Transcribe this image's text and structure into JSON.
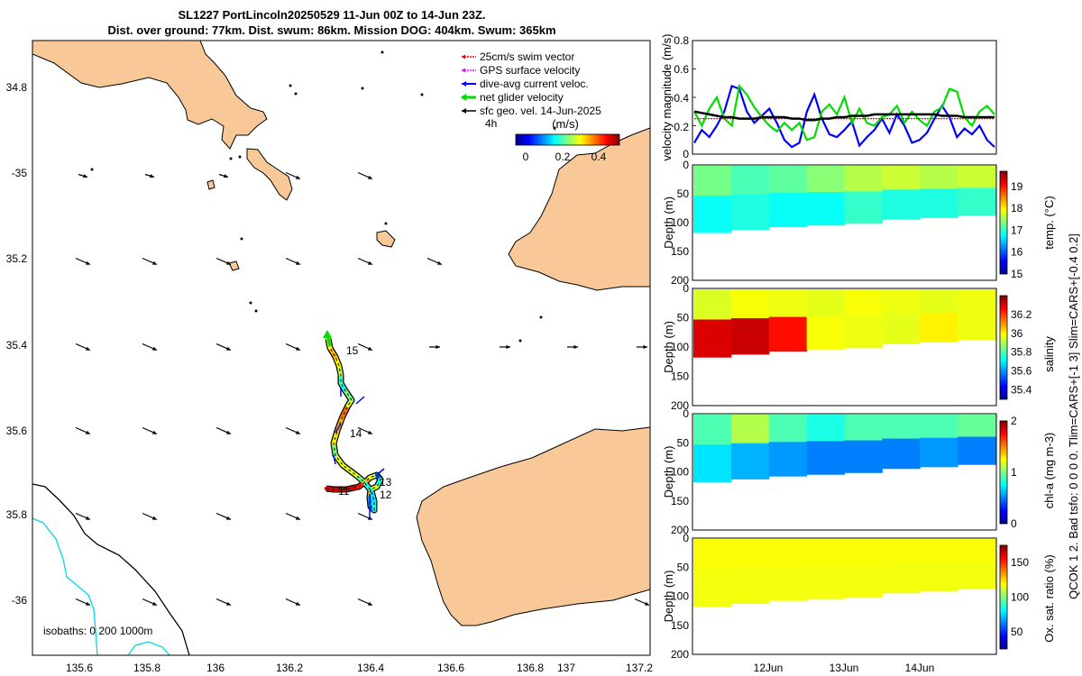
{
  "title": {
    "line1": "SL1227 PortLincoln20250529 11-Jun 00Z to 14-Jun 23Z.",
    "line2": "Dist. over ground: 77km. Dist. swum: 86km. Mission DOG: 404km. Swum: 365km"
  },
  "colors": {
    "land": "#f8c898",
    "swim_vector": "#ff0000",
    "gps_velocity": "#ff00ff",
    "current_velocity": "#0000ff",
    "net_velocity": "#00dd00",
    "geo_velocity": "#000000",
    "isobath_200": "#000000",
    "isobath_1000": "#00d8e8",
    "mean_line": "#000000"
  },
  "map": {
    "lon_ticks": [
      "135.6",
      "135.8",
      "136",
      "136.2",
      "136.4",
      "136.6",
      "136.8",
      "137",
      "137.2"
    ],
    "lat_ticks": [
      "34.8",
      "-35",
      "35.2",
      "35.4",
      "35.6",
      "35.8",
      "-36"
    ],
    "legend": {
      "items": [
        {
          "label": "25cm/s swim vector",
          "color": "#ff0000"
        },
        {
          "label": "GPS surface velocity",
          "color": "#ff00ff"
        },
        {
          "label": "dive-avg current veloc.",
          "color": "#0000ff"
        },
        {
          "label": "net glider velocity",
          "color": "#00dd00"
        },
        {
          "label": "sfc geo. vel. 14-Jun-2025",
          "color": "#000000"
        }
      ],
      "interval": "4h"
    },
    "colorbar": {
      "title": "(m/s)",
      "ticks": [
        "0",
        "0.2",
        "0.4"
      ]
    },
    "track_day_labels": [
      "15",
      "14",
      "13",
      "12",
      "11"
    ],
    "isobath_text": "isobaths: 0   200  1000m"
  },
  "chart_data": [
    {
      "type": "line",
      "title": "velocity magnitude",
      "ylabel": "velocity magnitude (m/s)",
      "ylim": [
        0,
        0.8
      ],
      "yticks": [
        "0",
        "0.2",
        "0.4",
        "0.6",
        "0.8"
      ],
      "x": [
        0,
        0.1,
        0.2,
        0.3,
        0.4,
        0.5,
        0.6,
        0.7,
        0.8,
        0.9,
        1.0,
        1.1,
        1.2,
        1.3,
        1.4,
        1.5,
        1.6,
        1.7,
        1.8,
        1.9,
        2.0,
        2.1,
        2.2,
        2.3,
        2.4,
        2.5,
        2.6,
        2.7,
        2.8,
        2.9,
        3.0,
        3.1,
        3.2,
        3.3,
        3.4,
        3.5,
        3.6,
        3.7,
        3.8,
        3.9,
        4.0
      ],
      "series": [
        {
          "name": "dive-avg current veloc.",
          "color": "#0000ff",
          "values": [
            0.08,
            0.17,
            0.12,
            0.2,
            0.3,
            0.48,
            0.46,
            0.3,
            0.22,
            0.27,
            0.32,
            0.22,
            0.1,
            0.05,
            0.08,
            0.3,
            0.42,
            0.25,
            0.14,
            0.12,
            0.17,
            0.23,
            0.06,
            0.12,
            0.17,
            0.25,
            0.15,
            0.28,
            0.2,
            0.08,
            0.1,
            0.15,
            0.25,
            0.34,
            0.26,
            0.12,
            0.18,
            0.14,
            0.2,
            0.1,
            0.05
          ]
        },
        {
          "name": "net glider velocity",
          "color": "#00dd00",
          "values": [
            0.3,
            0.2,
            0.32,
            0.4,
            0.25,
            0.2,
            0.48,
            0.42,
            0.33,
            0.26,
            0.2,
            0.16,
            0.22,
            0.17,
            0.22,
            0.1,
            0.12,
            0.3,
            0.35,
            0.28,
            0.4,
            0.22,
            0.32,
            0.22,
            0.2,
            0.26,
            0.28,
            0.34,
            0.22,
            0.3,
            0.24,
            0.2,
            0.3,
            0.33,
            0.46,
            0.44,
            0.26,
            0.2,
            0.3,
            0.34,
            0.28
          ]
        },
        {
          "name": "25cm/s swim vector",
          "color": "#ff0000",
          "values": [
            0.25,
            0.25,
            0.25,
            0.25,
            0.25,
            0.25,
            0.25,
            0.25,
            0.25,
            0.25,
            0.25,
            0.25,
            0.25,
            0.25,
            0.25,
            0.25,
            0.25,
            0.25,
            0.25,
            0.25,
            0.25,
            0.25,
            0.25,
            0.25,
            0.25,
            0.25,
            0.25,
            0.25,
            0.25,
            0.25,
            0.25,
            0.25,
            0.25,
            0.25,
            0.25,
            0.25,
            0.25,
            0.25,
            0.25,
            0.25,
            0.25
          ]
        },
        {
          "name": "mean",
          "color": "#000000",
          "values": [
            0.3,
            0.29,
            0.28,
            0.27,
            0.26,
            0.26,
            0.25,
            0.25,
            0.25,
            0.26,
            0.26,
            0.26,
            0.26,
            0.25,
            0.25,
            0.24,
            0.24,
            0.25,
            0.25,
            0.26,
            0.26,
            0.27,
            0.27,
            0.27,
            0.28,
            0.28,
            0.28,
            0.28,
            0.28,
            0.28,
            0.28,
            0.28,
            0.28,
            0.27,
            0.27,
            0.27,
            0.26,
            0.26,
            0.26,
            0.26,
            0.26
          ]
        }
      ]
    },
    {
      "type": "heatmap",
      "variable": "temp",
      "ylabel": "Depth (m)",
      "cbar_label": "temp. (°C)",
      "ylim": [
        200,
        0
      ],
      "yticks": [
        "0",
        "50",
        "100",
        "150",
        "200"
      ],
      "clim": [
        15,
        19.7
      ],
      "cbar_ticks": [
        "15",
        "16",
        "17",
        "18",
        "19"
      ],
      "x_days": [
        0,
        0.5,
        1.0,
        1.5,
        2.0,
        2.5,
        3.0,
        3.5,
        4.0
      ],
      "bottom_depth_m": [
        118,
        113,
        108,
        105,
        102,
        95,
        92,
        88,
        85
      ],
      "surface_values": [
        17.3,
        17.1,
        17.2,
        17.4,
        17.6,
        17.7,
        17.6,
        17.7,
        17.6
      ],
      "deep_values": [
        16.8,
        16.9,
        16.8,
        16.8,
        17.0,
        16.9,
        16.9,
        17.0,
        16.9
      ]
    },
    {
      "type": "heatmap",
      "variable": "salinity",
      "ylabel": "Depth (m)",
      "cbar_label": "salinity",
      "ylim": [
        200,
        0
      ],
      "yticks": [
        "0",
        "50",
        "100",
        "150",
        "200"
      ],
      "clim": [
        35.3,
        36.4
      ],
      "cbar_ticks": [
        "35.4",
        "35.6",
        "35.8",
        "36",
        "36.2"
      ],
      "x_days": [
        0,
        0.5,
        1.0,
        1.5,
        2.0,
        2.5,
        3.0,
        3.5,
        4.0
      ],
      "bottom_depth_m": [
        118,
        113,
        108,
        105,
        102,
        95,
        92,
        88,
        85
      ],
      "surface_values": [
        35.95,
        35.98,
        35.97,
        35.96,
        35.98,
        35.97,
        35.96,
        35.97,
        35.97
      ],
      "deep_values": [
        36.3,
        36.32,
        36.25,
        35.98,
        35.97,
        35.96,
        36.0,
        35.97,
        35.97
      ]
    },
    {
      "type": "heatmap",
      "variable": "chl-a",
      "ylabel": "Depth (m)",
      "cbar_label": "chl-a  (mg m-3)",
      "ylim": [
        200,
        0
      ],
      "yticks": [
        "0",
        "50",
        "100",
        "150",
        "200"
      ],
      "clim": [
        0,
        2
      ],
      "cbar_ticks": [
        "0",
        "1",
        "2"
      ],
      "x_days": [
        0,
        0.5,
        1.0,
        1.5,
        2.0,
        2.5,
        3.0,
        3.5,
        4.0
      ],
      "bottom_depth_m": [
        118,
        113,
        108,
        105,
        102,
        95,
        92,
        88,
        85
      ],
      "surface_values": [
        0.9,
        1.1,
        0.9,
        0.8,
        0.9,
        0.9,
        0.9,
        0.95,
        0.9
      ],
      "deep_values": [
        0.7,
        0.6,
        0.55,
        0.5,
        0.5,
        0.5,
        0.55,
        0.5,
        0.55
      ]
    },
    {
      "type": "heatmap",
      "variable": "oxygen",
      "ylabel": "Depth (m)",
      "cbar_label": "Ox. sat. ratio (%)",
      "ylim": [
        200,
        0
      ],
      "yticks": [
        "0",
        "50",
        "100",
        "150",
        "200"
      ],
      "clim": [
        25,
        175
      ],
      "cbar_ticks": [
        "50",
        "100",
        "150"
      ],
      "x_days": [
        0,
        0.5,
        1.0,
        1.5,
        2.0,
        2.5,
        3.0,
        3.5,
        4.0
      ],
      "bottom_depth_m": [
        118,
        113,
        108,
        105,
        102,
        95,
        92,
        88,
        85
      ],
      "surface_values": [
        118,
        118,
        118,
        118,
        118,
        118,
        118,
        118,
        118
      ],
      "deep_values": [
        117,
        117,
        117,
        117,
        117,
        117,
        117,
        117,
        117
      ]
    }
  ],
  "time_axis": {
    "ticks": [
      "12Jun",
      "13Jun",
      "14Jun"
    ]
  },
  "side_note": "QCOK 1   2. Bad tsfo: 0   0   0   0. Tlim=CARS+[-1 3] Slim=CARS+[-0.4 0.2]"
}
